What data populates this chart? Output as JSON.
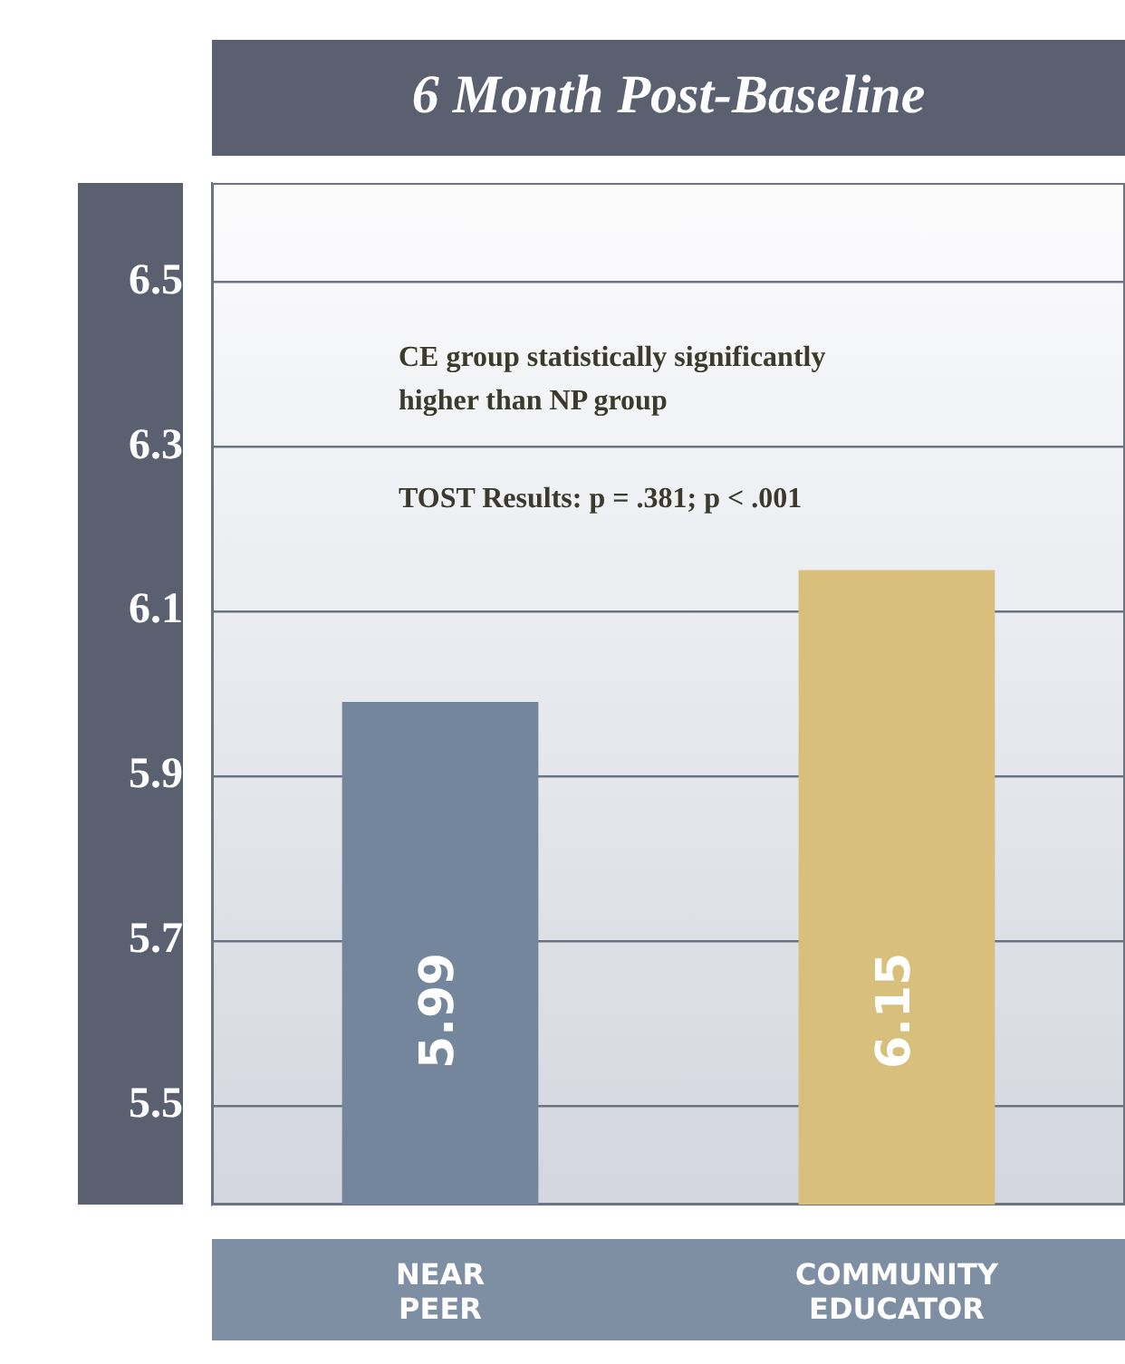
{
  "chart_data": {
    "type": "bar",
    "title": "6 Month Post-Baseline",
    "categories": [
      "NEAR PEER",
      "COMMUNITY EDUCATOR"
    ],
    "values": [
      5.99,
      6.15
    ],
    "colors": [
      "#74869c",
      "#d8c07c"
    ],
    "ylim": [
      5.38,
      6.62
    ],
    "yticks": [
      5.5,
      5.7,
      5.9,
      6.1,
      6.3,
      6.5
    ],
    "grid": "y",
    "legend": false,
    "data_labels": true,
    "annotations": [
      "CE group statistically significantly\nhigher than NP group",
      "TOST Results: p = .381; p < .001"
    ]
  }
}
